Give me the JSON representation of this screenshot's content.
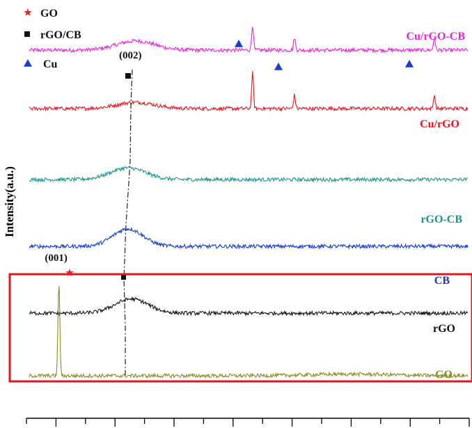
{
  "chart_data": {
    "type": "line",
    "title": "",
    "xlabel": "",
    "ylabel": "Intensity(a.u.)",
    "xlim": [
      5,
      80
    ],
    "grid": false,
    "legend_position": "top-left",
    "legend": [
      {
        "label": "GO",
        "marker": "star",
        "color": "#e0282b"
      },
      {
        "label": "rGO/CB",
        "marker": "square",
        "color": "#111111"
      },
      {
        "label": "Cu",
        "marker": "triangle",
        "color": "#1a3ccf"
      }
    ],
    "annotations": [
      {
        "text": "(002)",
        "x": 22.6
      },
      {
        "text": "(001)",
        "x": 10.5
      }
    ],
    "highlight_box": {
      "color": "#e8141b",
      "series": [
        "CB",
        "rGO"
      ]
    },
    "series": [
      {
        "name": "Cu/rGO-CB",
        "color": "#ee1fd8",
        "offset": 0.88,
        "hump": {
          "x": 23.5,
          "height": 0.022,
          "width": 4.5
        },
        "peaks": [
          {
            "x": 43.3,
            "height": 0.06
          },
          {
            "x": 50.4,
            "height": 0.03
          },
          {
            "x": 74.1,
            "height": 0.03
          }
        ]
      },
      {
        "name": "Cu/rGO",
        "color": "#e8141b",
        "offset": 0.74,
        "hump": {
          "x": 23.5,
          "height": 0.015,
          "width": 4.5
        },
        "peaks": [
          {
            "x": 43.3,
            "height": 0.085
          },
          {
            "x": 50.4,
            "height": 0.032
          },
          {
            "x": 74.1,
            "height": 0.033
          }
        ]
      },
      {
        "name": "rGO-CB",
        "color": "#1b9490",
        "offset": 0.57,
        "hump": {
          "x": 22.2,
          "height": 0.028,
          "width": 4.2
        },
        "peaks": []
      },
      {
        "name": "CB",
        "color": "#1438d8",
        "offset": 0.41,
        "hump": {
          "x": 22.2,
          "height": 0.042,
          "width": 3.6
        },
        "peaks": []
      },
      {
        "name": "rGO",
        "color": "#111111",
        "offset": 0.25,
        "hump": {
          "x": 22.8,
          "height": 0.034,
          "width": 4.0
        },
        "peaks": []
      },
      {
        "name": "GO",
        "color": "#8a8a22",
        "offset": 0.1,
        "hump": {
          "x": 60,
          "height": 0.004,
          "width": 10
        },
        "peaks": [
          {
            "x": 10.5,
            "height": 0.225
          }
        ]
      }
    ]
  }
}
